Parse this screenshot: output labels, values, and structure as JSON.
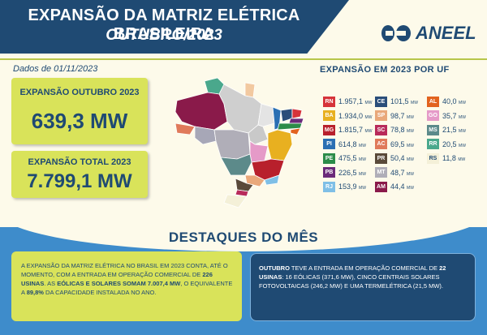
{
  "header": {
    "title": "EXPANSÃO DA MATRIZ ELÉTRICA BRASILEIRA",
    "subtitle": "OUTUBRO/2023",
    "logo_text": "ANEEL"
  },
  "date_label": "Dados de 01/11/2023",
  "card_month": {
    "label": "EXPANSÃO OUTUBRO 2023",
    "value": "639,3 MW"
  },
  "card_total": {
    "label": "EXPANSÃO TOTAL 2023",
    "value": "7.799,1 MW"
  },
  "uf_title": "EXPANSÃO EM 2023 POR UF",
  "unit": "MW",
  "uf": [
    {
      "code": "RN",
      "value": "1.957,1",
      "color": "#d6333a"
    },
    {
      "code": "BA",
      "value": "1.934,0",
      "color": "#e8b020"
    },
    {
      "code": "MG",
      "value": "1.815,7",
      "color": "#b8202c"
    },
    {
      "code": "PI",
      "value": "614,8",
      "color": "#2a6fb3"
    },
    {
      "code": "PE",
      "value": "475,5",
      "color": "#2c8c49"
    },
    {
      "code": "PB",
      "value": "226,5",
      "color": "#6b2a7a"
    },
    {
      "code": "RJ",
      "value": "153,9",
      "color": "#7fbfe6"
    },
    {
      "code": "CE",
      "value": "101,5",
      "color": "#2a4e7a"
    },
    {
      "code": "SP",
      "value": "98,7",
      "color": "#e9a87a"
    },
    {
      "code": "SC",
      "value": "78,8",
      "color": "#b82a5a"
    },
    {
      "code": "AC",
      "value": "69,5",
      "color": "#e07a5a"
    },
    {
      "code": "PR",
      "value": "50,4",
      "color": "#5a4a3a"
    },
    {
      "code": "MT",
      "value": "48,7",
      "color": "#b0aeb8"
    },
    {
      "code": "AM",
      "value": "44,4",
      "color": "#8a1a4a"
    },
    {
      "code": "AL",
      "value": "40,0",
      "color": "#e2631f"
    },
    {
      "code": "GO",
      "value": "35,7",
      "color": "#e59ac8"
    },
    {
      "code": "MS",
      "value": "21,5",
      "color": "#5c8a8a"
    },
    {
      "code": "RR",
      "value": "20,5",
      "color": "#4aa88c"
    },
    {
      "code": "RS",
      "value": "11,8",
      "color": "#f4f0d8"
    }
  ],
  "destaques_title": "DESTAQUES DO MÊS",
  "left_text": {
    "p1": "A EXPANSÃO DA MATRIZ ELÉTRICA NO BRASIL EM 2023 CONTA, ATÉ O MOMENTO, COM A ENTRADA EM OPERAÇÃO COMERCIAL DE ",
    "b1": "226 USINAS",
    "p2": ". AS ",
    "b2": "EÓLICAS E SOLARES SOMAM 7.007,4 MW",
    "p3": ", O EQUIVALENTE A ",
    "b3": "89,8%",
    "p4": " DA CAPACIDADE INSTALADA NO ANO."
  },
  "right_text": {
    "b1": "OUTUBRO",
    "p1": " TEVE A ENTRADA EM OPERAÇÃO COMERCIAL DE ",
    "b2": "22 USINAS",
    "p2": ": 16 EÓLICAS (371,6 MW), CINCO CENTRAIS SOLARES FOTOVOLTAICAS (246,2 MW) E UMA TERMELÉTRICA (21,5 MW)."
  }
}
